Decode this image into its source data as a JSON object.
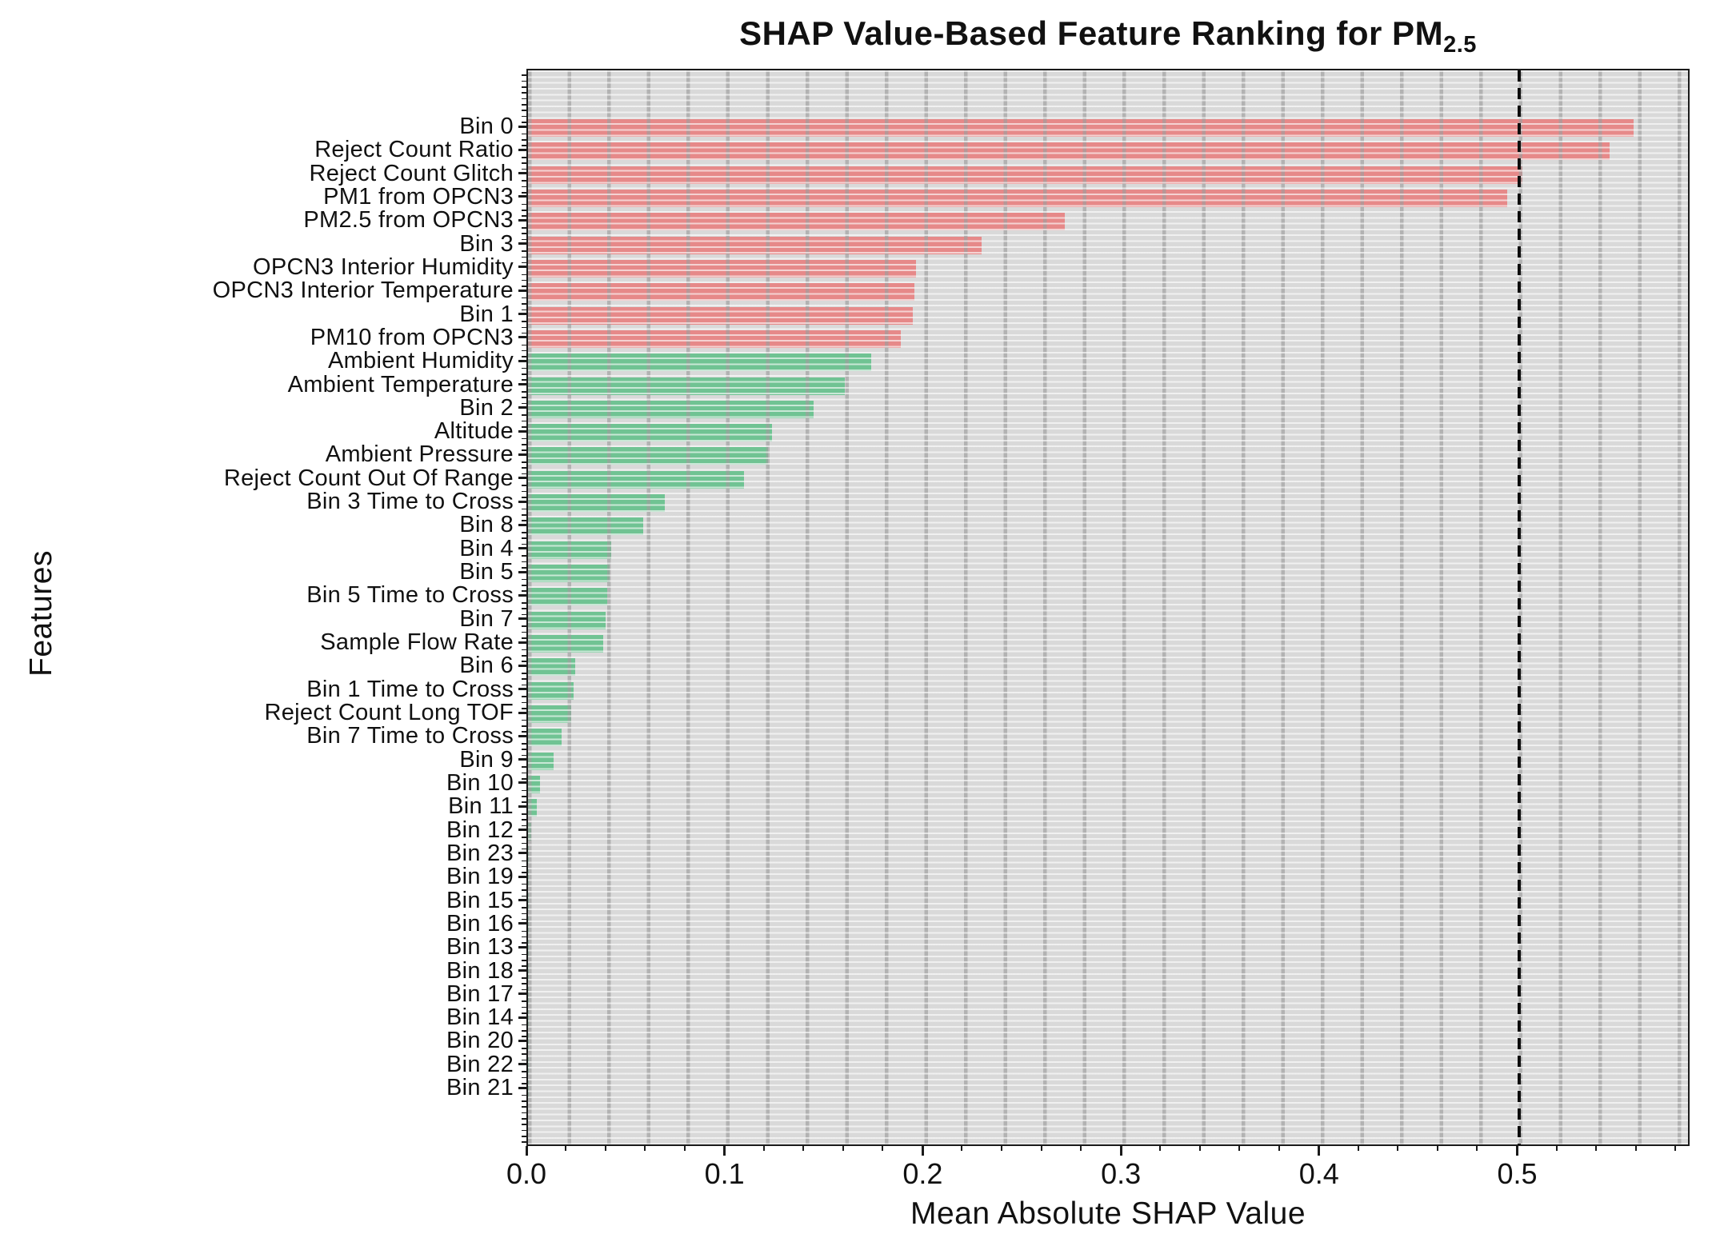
{
  "title": {
    "main": "SHAP Value-Based Feature Ranking for PM",
    "subscript": "2.5"
  },
  "axes": {
    "x_label": "Mean Absolute SHAP Value",
    "y_label": "Features",
    "x_tick_labels": [
      "0.0",
      "0.1",
      "0.2",
      "0.3",
      "0.4",
      "0.5"
    ],
    "x_tick_values": [
      0.0,
      0.1,
      0.2,
      0.3,
      0.4,
      0.5
    ]
  },
  "colors": {
    "high_group": "#e68989",
    "low_group": "#70c393",
    "plot_background": "#d9d9d9",
    "threshold_line": "#0d0d0d",
    "text": "#111111"
  },
  "chart_data": {
    "type": "bar",
    "orientation": "horizontal",
    "title": "SHAP Value-Based Feature Ranking for PM2.5",
    "xlabel": "Mean Absolute SHAP Value",
    "ylabel": "Features",
    "xlim": [
      0,
      0.587
    ],
    "x_major_tick_step": 0.1,
    "x_minor_tick_step": 0.02,
    "grid": true,
    "legend_position": "none",
    "threshold_value": 0.5,
    "threshold_style": "dashed",
    "high_color_count": 10,
    "categories": [
      "Bin 0",
      "Reject Count Ratio",
      "Reject Count Glitch",
      "PM1 from OPCN3",
      "PM2.5 from OPCN3",
      "Bin 3",
      "OPCN3 Interior Humidity",
      "OPCN3 Interior Temperature",
      "Bin 1",
      "PM10 from OPCN3",
      "Ambient Humidity",
      "Ambient Temperature",
      "Bin 2",
      "Altitude",
      "Ambient Pressure",
      "Reject Count Out Of Range",
      "Bin 3 Time to Cross",
      "Bin 8",
      "Bin 4",
      "Bin 5",
      "Bin 5 Time to Cross",
      "Bin 7",
      "Sample Flow Rate",
      "Bin 6",
      "Bin 1 Time to Cross",
      "Reject Count Long TOF",
      "Bin 7 Time to Cross",
      "Bin 9",
      "Bin 10",
      "Bin 11",
      "Bin 12",
      "Bin 23",
      "Bin 19",
      "Bin 15",
      "Bin 16",
      "Bin 13",
      "Bin 18",
      "Bin 17",
      "Bin 14",
      "Bin 20",
      "Bin 22",
      "Bin 21"
    ],
    "values": [
      0.558,
      0.546,
      0.502,
      0.494,
      0.271,
      0.229,
      0.196,
      0.195,
      0.194,
      0.188,
      0.173,
      0.16,
      0.144,
      0.123,
      0.121,
      0.109,
      0.069,
      0.058,
      0.042,
      0.041,
      0.04,
      0.039,
      0.038,
      0.024,
      0.023,
      0.022,
      0.017,
      0.013,
      0.006,
      0.0045,
      0.0016,
      0.0006,
      0.0005,
      0.0004,
      0.0004,
      0.0003,
      0.0003,
      0.0002,
      0.0002,
      0.0001,
      0.0001,
      0.0001
    ]
  }
}
